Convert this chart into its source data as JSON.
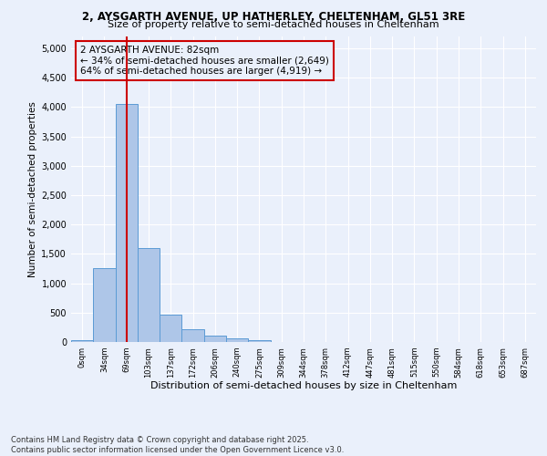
{
  "title1": "2, AYSGARTH AVENUE, UP HATHERLEY, CHELTENHAM, GL51 3RE",
  "title2": "Size of property relative to semi-detached houses in Cheltenham",
  "xlabel": "Distribution of semi-detached houses by size in Cheltenham",
  "ylabel": "Number of semi-detached properties",
  "categories": [
    "0sqm",
    "34sqm",
    "69sqm",
    "103sqm",
    "137sqm",
    "172sqm",
    "206sqm",
    "240sqm",
    "275sqm",
    "309sqm",
    "344sqm",
    "378sqm",
    "412sqm",
    "447sqm",
    "481sqm",
    "515sqm",
    "550sqm",
    "584sqm",
    "618sqm",
    "653sqm",
    "687sqm"
  ],
  "values": [
    30,
    1250,
    4050,
    1600,
    460,
    210,
    110,
    55,
    30,
    0,
    0,
    0,
    0,
    0,
    0,
    0,
    0,
    0,
    0,
    0,
    0
  ],
  "bar_color": "#aec6e8",
  "bar_edge_color": "#5b9bd5",
  "line_color": "#cc0000",
  "line_x_index": 2.0,
  "annotation_text": "2 AYSGARTH AVENUE: 82sqm\n← 34% of semi-detached houses are smaller (2,649)\n64% of semi-detached houses are larger (4,919) →",
  "ylim": [
    0,
    5200
  ],
  "yticks": [
    0,
    500,
    1000,
    1500,
    2000,
    2500,
    3000,
    3500,
    4000,
    4500,
    5000
  ],
  "footnote": "Contains HM Land Registry data © Crown copyright and database right 2025.\nContains public sector information licensed under the Open Government Licence v3.0.",
  "bg_color": "#eaf0fb",
  "plot_bg_color": "#eaf0fb"
}
